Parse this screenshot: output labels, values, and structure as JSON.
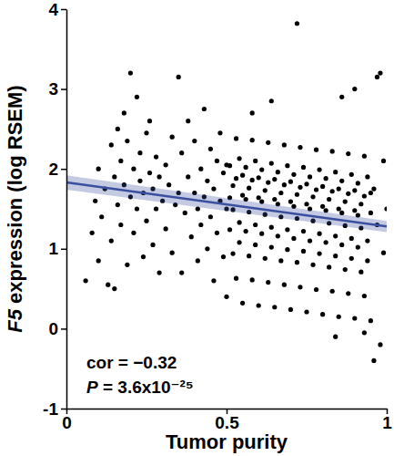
{
  "chart_data": {
    "type": "scatter",
    "x_label": "Tumor purity",
    "y_label": "F5 expression (log RSEM)",
    "annotations": [
      "cor = −0.32",
      "P = 3.6x10⁻²⁵"
    ],
    "xlim": [
      0,
      1
    ],
    "xticks": [
      0,
      0.5,
      1
    ],
    "ylim": [
      -1,
      4
    ],
    "yticks": [
      -1,
      0,
      1,
      2,
      3,
      4
    ],
    "series": [
      {
        "type": "scatter",
        "color": "#000000",
        "marker": "circle",
        "x": [
          0.06,
          0.08,
          0.09,
          0.1,
          0.1,
          0.11,
          0.12,
          0.13,
          0.14,
          0.14,
          0.15,
          0.15,
          0.16,
          0.16,
          0.17,
          0.17,
          0.18,
          0.18,
          0.19,
          0.19,
          0.2,
          0.2,
          0.21,
          0.21,
          0.22,
          0.22,
          0.23,
          0.23,
          0.24,
          0.24,
          0.25,
          0.25,
          0.26,
          0.26,
          0.27,
          0.27,
          0.28,
          0.28,
          0.29,
          0.29,
          0.3,
          0.31,
          0.31,
          0.32,
          0.33,
          0.33,
          0.34,
          0.35,
          0.35,
          0.36,
          0.36,
          0.37,
          0.38,
          0.38,
          0.39,
          0.4,
          0.4,
          0.41,
          0.41,
          0.42,
          0.42,
          0.43,
          0.43,
          0.44,
          0.44,
          0.45,
          0.45,
          0.46,
          0.46,
          0.47,
          0.47,
          0.48,
          0.48,
          0.49,
          0.49,
          0.5,
          0.5,
          0.5,
          0.51,
          0.51,
          0.51,
          0.52,
          0.52,
          0.52,
          0.53,
          0.53,
          0.53,
          0.54,
          0.54,
          0.54,
          0.55,
          0.55,
          0.55,
          0.56,
          0.56,
          0.56,
          0.57,
          0.57,
          0.57,
          0.58,
          0.58,
          0.58,
          0.59,
          0.59,
          0.59,
          0.6,
          0.6,
          0.6,
          0.61,
          0.61,
          0.61,
          0.62,
          0.62,
          0.62,
          0.63,
          0.63,
          0.63,
          0.64,
          0.64,
          0.64,
          0.65,
          0.65,
          0.65,
          0.66,
          0.66,
          0.66,
          0.67,
          0.67,
          0.67,
          0.68,
          0.68,
          0.68,
          0.69,
          0.69,
          0.69,
          0.7,
          0.7,
          0.7,
          0.71,
          0.71,
          0.71,
          0.72,
          0.72,
          0.72,
          0.72,
          0.73,
          0.73,
          0.73,
          0.74,
          0.74,
          0.74,
          0.75,
          0.75,
          0.75,
          0.76,
          0.76,
          0.76,
          0.77,
          0.77,
          0.77,
          0.78,
          0.78,
          0.78,
          0.79,
          0.79,
          0.79,
          0.8,
          0.8,
          0.8,
          0.81,
          0.81,
          0.81,
          0.82,
          0.82,
          0.82,
          0.83,
          0.83,
          0.83,
          0.84,
          0.84,
          0.84,
          0.85,
          0.85,
          0.85,
          0.86,
          0.86,
          0.86,
          0.87,
          0.87,
          0.87,
          0.88,
          0.88,
          0.88,
          0.89,
          0.89,
          0.89,
          0.9,
          0.9,
          0.9,
          0.91,
          0.91,
          0.91,
          0.92,
          0.92,
          0.92,
          0.93,
          0.93,
          0.93,
          0.94,
          0.94,
          0.94,
          0.95,
          0.95,
          0.95,
          0.97,
          0.98,
          0.96,
          0.98,
          0.97,
          0.99,
          0.99,
          0.96,
          1.0,
          0.93,
          0.86,
          0.9,
          0.64,
          0.58,
          0.84
        ],
        "values": [
          0.6,
          1.2,
          1.6,
          2.0,
          0.85,
          1.4,
          1.75,
          0.55,
          2.3,
          1.1,
          0.5,
          1.9,
          2.5,
          1.55,
          1.3,
          2.1,
          2.7,
          1.8,
          0.8,
          2.35,
          3.2,
          1.65,
          2.0,
          1.2,
          2.9,
          1.5,
          1.85,
          2.2,
          0.9,
          1.7,
          2.45,
          1.35,
          1.95,
          2.6,
          1.05,
          1.75,
          2.15,
          1.5,
          1.9,
          0.7,
          1.6,
          2.05,
          1.25,
          1.8,
          2.4,
          0.95,
          1.55,
          3.15,
          1.7,
          0.7,
          2.2,
          1.45,
          1.9,
          2.6,
          1.15,
          1.7,
          2.35,
          0.85,
          1.5,
          2.0,
          1.3,
          2.75,
          1.65,
          1.0,
          1.85,
          2.25,
          1.4,
          0.6,
          1.75,
          2.1,
          1.2,
          1.6,
          2.45,
          0.9,
          1.95,
          1.5,
          2.05,
          0.4,
          2.04,
          1.24,
          1.64,
          0.94,
          1.79,
          1.49,
          2.38,
          0.63,
          1.88,
          1.33,
          2.13,
          1.08,
          1.67,
          0.32,
          1.92,
          2.02,
          1.22,
          1.62,
          0.91,
          1.76,
          1.46,
          2.36,
          0.61,
          1.86,
          1.3,
          2.1,
          1.05,
          1.64,
          0.29,
          1.89,
          1.99,
          1.19,
          1.59,
          0.88,
          1.73,
          1.43,
          2.33,
          0.58,
          1.83,
          1.27,
          2.07,
          1.02,
          1.62,
          0.27,
          1.87,
          1.96,
          1.16,
          1.56,
          0.85,
          1.7,
          1.4,
          2.3,
          0.55,
          1.8,
          1.24,
          2.04,
          0.99,
          1.59,
          0.24,
          1.84,
          1.93,
          1.13,
          1.53,
          0.83,
          1.68,
          1.38,
          3.82,
          2.27,
          0.52,
          1.77,
          1.22,
          2.02,
          0.97,
          1.56,
          0.21,
          1.81,
          1.9,
          1.1,
          1.5,
          0.8,
          1.65,
          1.35,
          2.24,
          0.49,
          1.74,
          1.19,
          1.99,
          0.94,
          1.53,
          0.18,
          1.78,
          1.88,
          1.08,
          1.48,
          0.77,
          1.62,
          1.32,
          2.22,
          0.47,
          1.72,
          1.16,
          1.96,
          0.91,
          1.5,
          0.15,
          1.75,
          1.85,
          1.05,
          1.45,
          0.74,
          1.59,
          1.29,
          2.19,
          0.44,
          1.69,
          1.13,
          1.93,
          0.88,
          1.48,
          0.13,
          1.73,
          1.82,
          1.02,
          1.42,
          0.71,
          1.56,
          1.26,
          2.16,
          0.41,
          1.66,
          1.1,
          1.9,
          0.85,
          1.45,
          0.1,
          1.7,
          3.15,
          3.2,
          -0.4,
          -0.2,
          1.3,
          2.1,
          0.95,
          1.75,
          1.5,
          -0.05,
          2.9,
          3.0,
          2.85,
          2.7,
          -0.1
        ]
      },
      {
        "type": "line",
        "color": "#3a4fa0",
        "line_style": "solid",
        "x": [
          0,
          1
        ],
        "values": [
          1.83,
          1.28
        ],
        "lower": [
          1.74,
          1.21
        ],
        "upper": [
          1.92,
          1.35
        ]
      }
    ]
  }
}
